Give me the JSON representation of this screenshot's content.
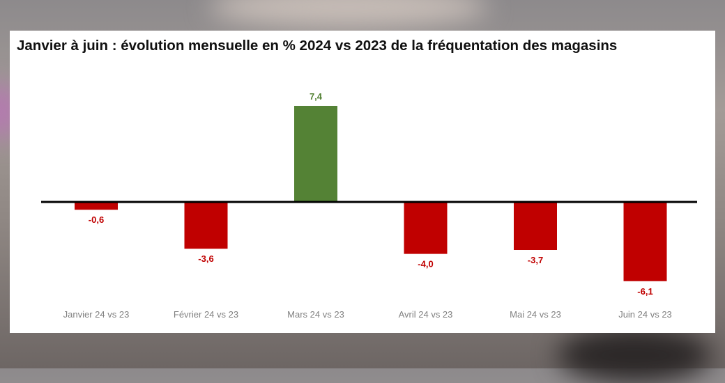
{
  "chart_data": {
    "type": "bar",
    "title": "Janvier à juin : évolution mensuelle en % 2024 vs 2023 de la fréquentation des magasins",
    "categories": [
      "Janvier 24 vs 23",
      "Février 24 vs 23",
      "Mars 24 vs 23",
      "Avril 24 vs 23",
      "Mai 24 vs 23",
      "Juin 24 vs 23"
    ],
    "values": [
      -0.6,
      -3.6,
      7.4,
      -4.0,
      -3.7,
      -6.1
    ],
    "value_labels": [
      "-0,6",
      "-3,6",
      "7,4",
      "-4,0",
      "-3,7",
      "-6,1"
    ],
    "ylim": [
      -8,
      8
    ],
    "grid": false,
    "colors": {
      "positive": "#548235",
      "negative": "#c00000",
      "axis": "#000000"
    }
  }
}
